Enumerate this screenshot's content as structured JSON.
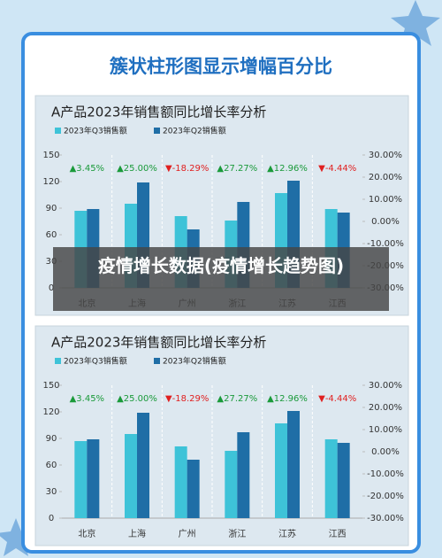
{
  "header": {
    "title": "簇状柱形图显示增幅百分比"
  },
  "overlay": {
    "text": "疫情增长数据(疫情增长趋势图)"
  },
  "chart_data": [
    {
      "type": "bar",
      "title": "A产品2023年销售额同比增长率分析",
      "categories": [
        "北京",
        "上海",
        "广州",
        "浙江",
        "江苏",
        "江西"
      ],
      "series": [
        {
          "name": "2023年Q3销售额",
          "color": "#3ec3d8",
          "values": [
            87,
            95,
            81,
            76,
            107,
            89
          ]
        },
        {
          "name": "2023年Q2销售额",
          "color": "#1f6ea6",
          "values": [
            89,
            119,
            66,
            97,
            121,
            85
          ]
        }
      ],
      "growth": {
        "axis": "y2",
        "values": [
          3.45,
          25.0,
          -18.29,
          27.27,
          12.96,
          -4.44
        ],
        "value_labels": [
          "▲3.45%",
          "▲25.00%",
          "▼-18.29%",
          "▲27.27%",
          "▲12.96%",
          "▼-4.44%"
        ],
        "colors": [
          "#1a9a3a",
          "#1a9a3a",
          "#e02020",
          "#1a9a3a",
          "#1a9a3a",
          "#e02020"
        ]
      },
      "ylim": [
        0,
        150
      ],
      "yticks": [
        0,
        30,
        60,
        90,
        120,
        150
      ],
      "y2lim": [
        -30,
        30
      ],
      "y2ticks": [
        {
          "value": -30,
          "label": "-30.00%"
        },
        {
          "value": -20,
          "label": "-20.00%"
        },
        {
          "value": -10,
          "label": "-10.00%"
        },
        {
          "value": 0,
          "label": "0.00%"
        },
        {
          "value": 10,
          "label": "10.00%"
        },
        {
          "value": 20,
          "label": "20.00%"
        },
        {
          "value": 30,
          "label": "30.00%"
        }
      ]
    },
    {
      "type": "bar",
      "title": "A产品2023年销售额同比增长率分析",
      "categories": [
        "北京",
        "上海",
        "广州",
        "浙江",
        "江苏",
        "江西"
      ],
      "series": [
        {
          "name": "2023年Q3销售额",
          "color": "#3ec3d8",
          "values": [
            87,
            95,
            81,
            76,
            107,
            89
          ]
        },
        {
          "name": "2023年Q2销售额",
          "color": "#1f6ea6",
          "values": [
            89,
            119,
            66,
            97,
            121,
            85
          ]
        }
      ],
      "growth": {
        "axis": "y2",
        "values": [
          3.45,
          25.0,
          -18.29,
          27.27,
          12.96,
          -4.44
        ],
        "value_labels": [
          "▲3.45%",
          "▲25.00%",
          "▼-18.29%",
          "▲27.27%",
          "▲12.96%",
          "▼-4.44%"
        ],
        "colors": [
          "#1a9a3a",
          "#1a9a3a",
          "#e02020",
          "#1a9a3a",
          "#1a9a3a",
          "#e02020"
        ]
      },
      "ylim": [
        0,
        150
      ],
      "yticks": [
        0,
        30,
        60,
        90,
        120,
        150
      ],
      "y2lim": [
        -30,
        30
      ],
      "y2ticks": [
        {
          "value": -30,
          "label": "-30.00%"
        },
        {
          "value": -20,
          "label": "-20.00%"
        },
        {
          "value": -10,
          "label": "-10.00%"
        },
        {
          "value": 0,
          "label": "0.00%"
        },
        {
          "value": 10,
          "label": "10.00%"
        },
        {
          "value": 20,
          "label": "20.00%"
        },
        {
          "value": 30,
          "label": "30.00%"
        }
      ]
    }
  ]
}
